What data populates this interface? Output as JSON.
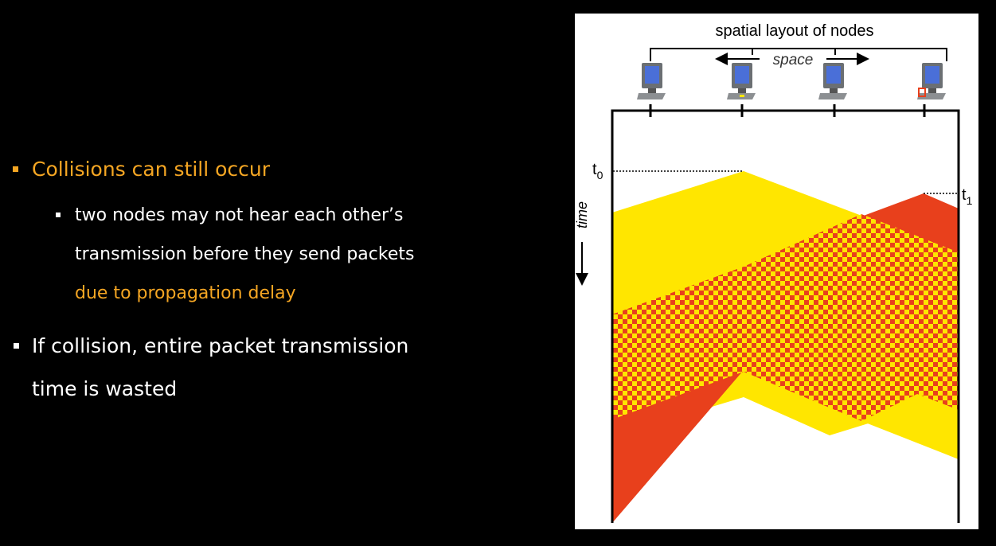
{
  "slide": {
    "bullet1": {
      "text": "Collisions can still occur",
      "color": "#F5A623"
    },
    "sub": {
      "line1": "two nodes may not hear each other’s",
      "line2": "transmission before they send packets",
      "line3": "due to propagation delay",
      "line3_color": "#F5A623"
    },
    "bullet2": {
      "line1": "If collision, entire packet transmission",
      "line2": "time is wasted"
    }
  },
  "diagram": {
    "title": "spatial layout of nodes",
    "space_label": "space",
    "time_label": "time",
    "t0": {
      "base": "t",
      "sub": "0"
    },
    "t1": {
      "base": "t",
      "sub": "1"
    },
    "colors": {
      "yellow": "#FFE600",
      "red": "#E8401C"
    },
    "nodes": [
      "computer-icon",
      "computer-icon",
      "computer-icon",
      "computer-icon"
    ]
  }
}
